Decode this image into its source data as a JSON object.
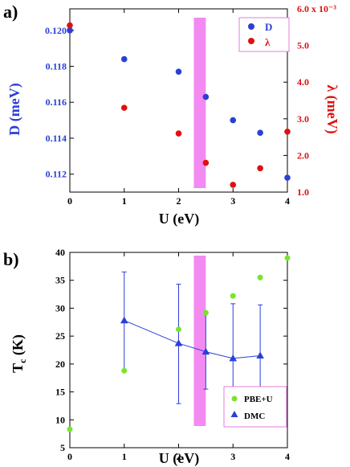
{
  "chart_data": [
    {
      "panel_label": "a)",
      "type": "scatter",
      "xlabel": "U (eV)",
      "ylabel": "D (meV)",
      "y2label": "λ (meV)",
      "x_ticks": [
        "0",
        "1",
        "2",
        "3",
        "4"
      ],
      "xlim": [
        0,
        4
      ],
      "ylim": [
        0.111,
        0.1212
      ],
      "y_ticks": [
        "0.112",
        "0.114",
        "0.116",
        "0.118",
        "0.120"
      ],
      "y2lim": [
        1.0,
        6.0
      ],
      "y2_ticks": [
        "1.0",
        "2.0",
        "3.0",
        "4.0",
        "5.0",
        "6.0 x 10⁻³"
      ],
      "shaded_band_x": [
        2.28,
        2.5
      ],
      "legend_position": "top-right",
      "series": [
        {
          "name": "D",
          "axis": "left",
          "color": "#2b3fd6",
          "x": [
            0,
            1,
            2,
            2.5,
            3,
            3.5,
            4
          ],
          "y": [
            0.12,
            0.1184,
            0.1177,
            0.1163,
            0.115,
            0.1143,
            0.1118
          ]
        },
        {
          "name": "λ",
          "axis": "right",
          "color": "#e01010",
          "x": [
            0,
            1,
            2,
            2.5,
            3,
            3.5,
            4
          ],
          "y": [
            5.55,
            3.3,
            2.6,
            1.8,
            1.2,
            1.65,
            2.65
          ]
        }
      ]
    },
    {
      "panel_label": "b)",
      "type": "line",
      "xlabel": "U (eV)",
      "ylabel": "Tc (K)",
      "ylabel_main": "T",
      "ylabel_sub": "c",
      "ylabel_unit": " (K)",
      "x_ticks": [
        "0",
        "1",
        "2",
        "3",
        "4"
      ],
      "xlim": [
        0,
        4
      ],
      "ylim": [
        5,
        40
      ],
      "y_ticks": [
        "5",
        "10",
        "15",
        "20",
        "25",
        "30",
        "35",
        "40"
      ],
      "shaded_band_x": [
        2.28,
        2.5
      ],
      "legend_position": "bottom-right",
      "series": [
        {
          "name": "PBE+U",
          "color": "#77e62a",
          "marker": "circle",
          "x": [
            0,
            1,
            2,
            2.5,
            3,
            3.5,
            4
          ],
          "y": [
            8.3,
            18.8,
            26.2,
            29.2,
            32.2,
            35.5,
            39.0
          ]
        },
        {
          "name": "DMC",
          "color": "#2b3fd6",
          "marker": "triangle",
          "x": [
            1,
            2,
            2.5,
            3,
            3.5
          ],
          "y": [
            27.8,
            23.7,
            22.2,
            21.0,
            21.5
          ],
          "err_low": [
            18.8,
            12.9,
            15.5,
            11.1,
            12.4
          ],
          "err_high": [
            36.5,
            34.3,
            29.0,
            30.8,
            30.6
          ]
        }
      ]
    }
  ]
}
